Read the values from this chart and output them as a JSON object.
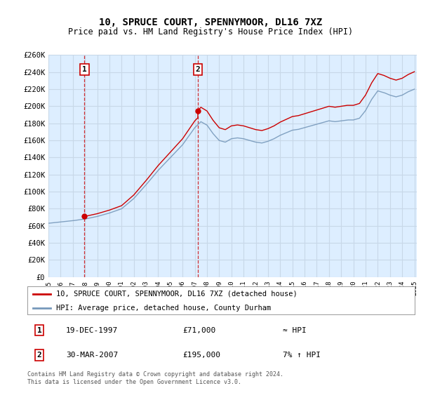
{
  "title": "10, SPRUCE COURT, SPENNYMOOR, DL16 7XZ",
  "subtitle": "Price paid vs. HM Land Registry's House Price Index (HPI)",
  "ylim": [
    0,
    260000
  ],
  "yticks": [
    0,
    20000,
    40000,
    60000,
    80000,
    100000,
    120000,
    140000,
    160000,
    180000,
    200000,
    220000,
    240000,
    260000
  ],
  "ytick_labels": [
    "£0",
    "£20K",
    "£40K",
    "£60K",
    "£80K",
    "£100K",
    "£120K",
    "£140K",
    "£160K",
    "£180K",
    "£200K",
    "£220K",
    "£240K",
    "£260K"
  ],
  "plot_bg_color": "#ddeeff",
  "grid_color": "#c8d8e8",
  "line1_color": "#cc0000",
  "line2_color": "#7799bb",
  "vline_color": "#cc0000",
  "transaction1_x": 1997.96,
  "transaction1_y": 71000,
  "transaction1_label": "1",
  "transaction2_x": 2007.25,
  "transaction2_y": 195000,
  "transaction2_label": "2",
  "legend1_label": "10, SPRUCE COURT, SPENNYMOOR, DL16 7XZ (detached house)",
  "legend2_label": "HPI: Average price, detached house, County Durham",
  "ann1_date": "19-DEC-1997",
  "ann1_price": "£71,000",
  "ann1_hpi": "≈ HPI",
  "ann2_date": "30-MAR-2007",
  "ann2_price": "£195,000",
  "ann2_hpi": "7% ↑ HPI",
  "footnote": "Contains HM Land Registry data © Crown copyright and database right 2024.\nThis data is licensed under the Open Government Licence v3.0.",
  "xtick_years": [
    1995,
    1996,
    1997,
    1998,
    1999,
    2000,
    2001,
    2002,
    2003,
    2004,
    2005,
    2006,
    2007,
    2008,
    2009,
    2010,
    2011,
    2012,
    2013,
    2014,
    2015,
    2016,
    2017,
    2018,
    2019,
    2020,
    2021,
    2022,
    2023,
    2024,
    2025
  ]
}
